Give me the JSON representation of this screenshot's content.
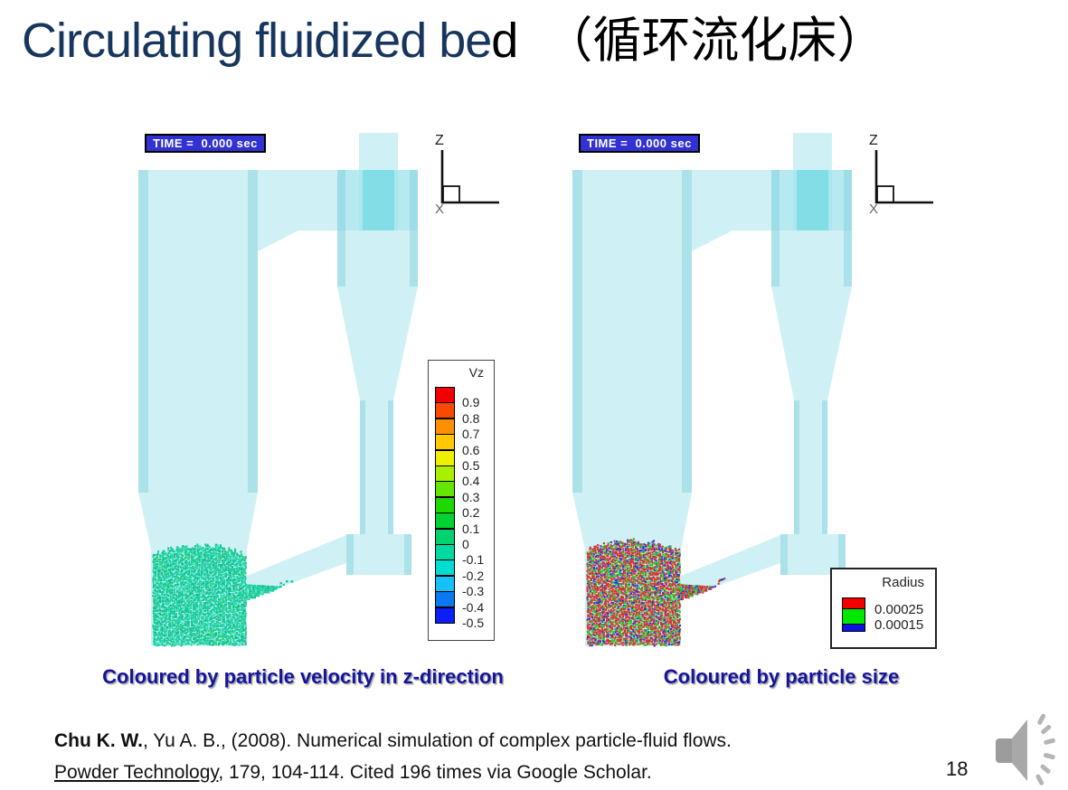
{
  "slide": {
    "title_en": "Circulating fluidized be",
    "title_en_tail": "d",
    "title_cjk": "（循环流化床）",
    "page_number": "18"
  },
  "panels": {
    "left": {
      "time_label": "TIME =  0.000 sec",
      "axis": {
        "vertical": "Z",
        "horizontal": "X"
      },
      "caption": "Coloured by particle velocity in z-direction",
      "colorbar": {
        "title": "Vz",
        "tick_labels": [
          "0.9",
          "0.8",
          "0.7",
          "0.6",
          "0.5",
          "0.4",
          "0.3",
          "0.2",
          "0.1",
          "0",
          "-0.1",
          "-0.2",
          "-0.3",
          "-0.4",
          "-0.5"
        ],
        "cell_colors": [
          "#f20000",
          "#fa4a00",
          "#ff8e00",
          "#ffc800",
          "#eef000",
          "#aaee00",
          "#64e600",
          "#1ed800",
          "#00d232",
          "#00d26e",
          "#00daa0",
          "#00dcd2",
          "#18c0f8",
          "#0a78f0",
          "#0a1ef5"
        ]
      },
      "particles": {
        "colors": [
          "#17cfa0",
          "#10c090",
          "#2adcae",
          "#27d060"
        ],
        "weights": [
          0.45,
          0.28,
          0.22,
          0.05
        ]
      }
    },
    "right": {
      "time_label": "TIME =  0.000 sec",
      "axis": {
        "vertical": "Z",
        "horizontal": "X"
      },
      "caption": "Coloured by particle size",
      "size_legend": {
        "title": "Radius",
        "colors": [
          "#f50000",
          "#00e800",
          "#0a14e6"
        ],
        "values": [
          "0.00025",
          "0.00015"
        ]
      },
      "particles": {
        "colors": [
          "#cb3a33",
          "#2bc42b",
          "#2b38d8"
        ],
        "weights": [
          0.56,
          0.27,
          0.17
        ]
      }
    }
  },
  "citation": {
    "authors_bold": "Chu K. W.",
    "line1_rest": ", Yu A. B., (2008). Numerical simulation of complex particle-fluid flows.",
    "journal_underlined": "Powder Technology",
    "line2_rest": ", 179, 104-114. Cited 196 times via Google Scholar."
  },
  "colors": {
    "title_navy": "#17365d",
    "caption_blue": "#14149c",
    "time_label_bg": "#3232d2",
    "vessel_cyan": "#9fe3ec"
  }
}
